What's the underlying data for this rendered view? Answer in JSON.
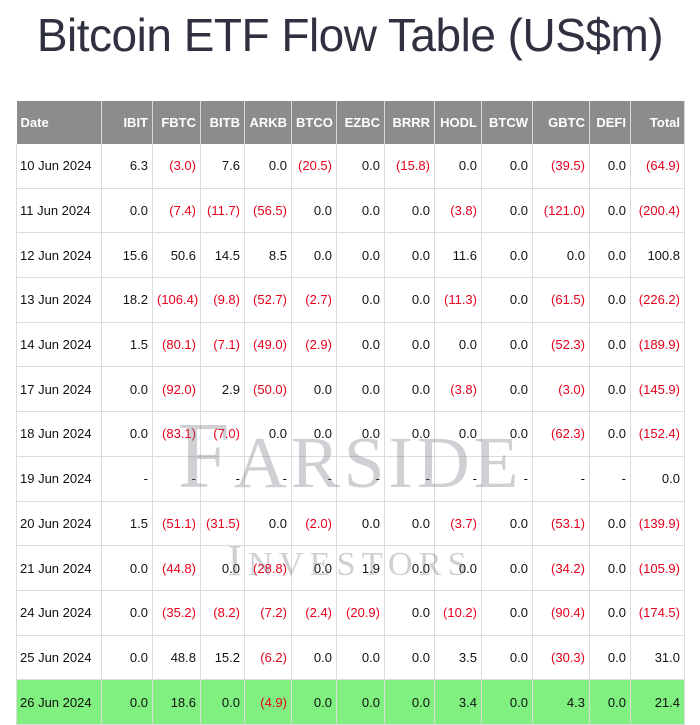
{
  "title": "Bitcoin ETF Flow Table (US$m)",
  "watermark": {
    "line1": "Farside",
    "line2": "Investors"
  },
  "columns": [
    "Date",
    "IBIT",
    "FBTC",
    "BITB",
    "ARKB",
    "BTCO",
    "EZBC",
    "BRRR",
    "HODL",
    "BTCW",
    "GBTC",
    "DEFI",
    "Total"
  ],
  "rows": [
    [
      "10 Jun 2024",
      "6.3",
      "(3.0)",
      "7.6",
      "0.0",
      "(20.5)",
      "0.0",
      "(15.8)",
      "0.0",
      "0.0",
      "(39.5)",
      "0.0",
      "(64.9)"
    ],
    [
      "11 Jun 2024",
      "0.0",
      "(7.4)",
      "(11.7)",
      "(56.5)",
      "0.0",
      "0.0",
      "0.0",
      "(3.8)",
      "0.0",
      "(121.0)",
      "0.0",
      "(200.4)"
    ],
    [
      "12 Jun 2024",
      "15.6",
      "50.6",
      "14.5",
      "8.5",
      "0.0",
      "0.0",
      "0.0",
      "11.6",
      "0.0",
      "0.0",
      "0.0",
      "100.8"
    ],
    [
      "13 Jun 2024",
      "18.2",
      "(106.4)",
      "(9.8)",
      "(52.7)",
      "(2.7)",
      "0.0",
      "0.0",
      "(11.3)",
      "0.0",
      "(61.5)",
      "0.0",
      "(226.2)"
    ],
    [
      "14 Jun 2024",
      "1.5",
      "(80.1)",
      "(7.1)",
      "(49.0)",
      "(2.9)",
      "0.0",
      "0.0",
      "0.0",
      "0.0",
      "(52.3)",
      "0.0",
      "(189.9)"
    ],
    [
      "17 Jun 2024",
      "0.0",
      "(92.0)",
      "2.9",
      "(50.0)",
      "0.0",
      "0.0",
      "0.0",
      "(3.8)",
      "0.0",
      "(3.0)",
      "0.0",
      "(145.9)"
    ],
    [
      "18 Jun 2024",
      "0.0",
      "(83.1)",
      "(7.0)",
      "0.0",
      "0.0",
      "0.0",
      "0.0",
      "0.0",
      "0.0",
      "(62.3)",
      "0.0",
      "(152.4)"
    ],
    [
      "19 Jun 2024",
      "-",
      "-",
      "-",
      "-",
      "-",
      "-",
      "-",
      "-",
      "-",
      "-",
      "-",
      "0.0"
    ],
    [
      "20 Jun 2024",
      "1.5",
      "(51.1)",
      "(31.5)",
      "0.0",
      "(2.0)",
      "0.0",
      "0.0",
      "(3.7)",
      "0.0",
      "(53.1)",
      "0.0",
      "(139.9)"
    ],
    [
      "21 Jun 2024",
      "0.0",
      "(44.8)",
      "0.0",
      "(28.8)",
      "0.0",
      "1.9",
      "0.0",
      "0.0",
      "0.0",
      "(34.2)",
      "0.0",
      "(105.9)"
    ],
    [
      "24 Jun 2024",
      "0.0",
      "(35.2)",
      "(8.2)",
      "(7.2)",
      "(2.4)",
      "(20.9)",
      "0.0",
      "(10.2)",
      "0.0",
      "(90.4)",
      "0.0",
      "(174.5)"
    ],
    [
      "25 Jun 2024",
      "0.0",
      "48.8",
      "15.2",
      "(6.2)",
      "0.0",
      "0.0",
      "0.0",
      "3.5",
      "0.0",
      "(30.3)",
      "0.0",
      "31.0"
    ],
    [
      "26 Jun 2024",
      "0.0",
      "18.6",
      "0.0",
      "(4.9)",
      "0.0",
      "0.0",
      "0.0",
      "3.4",
      "0.0",
      "4.3",
      "0.0",
      "21.4"
    ]
  ],
  "highlight_row": 12,
  "colors": {
    "header_bg": "#8c8c8c",
    "negative": "#e8001c",
    "highlight": "#80f080",
    "title": "#2f3140"
  }
}
